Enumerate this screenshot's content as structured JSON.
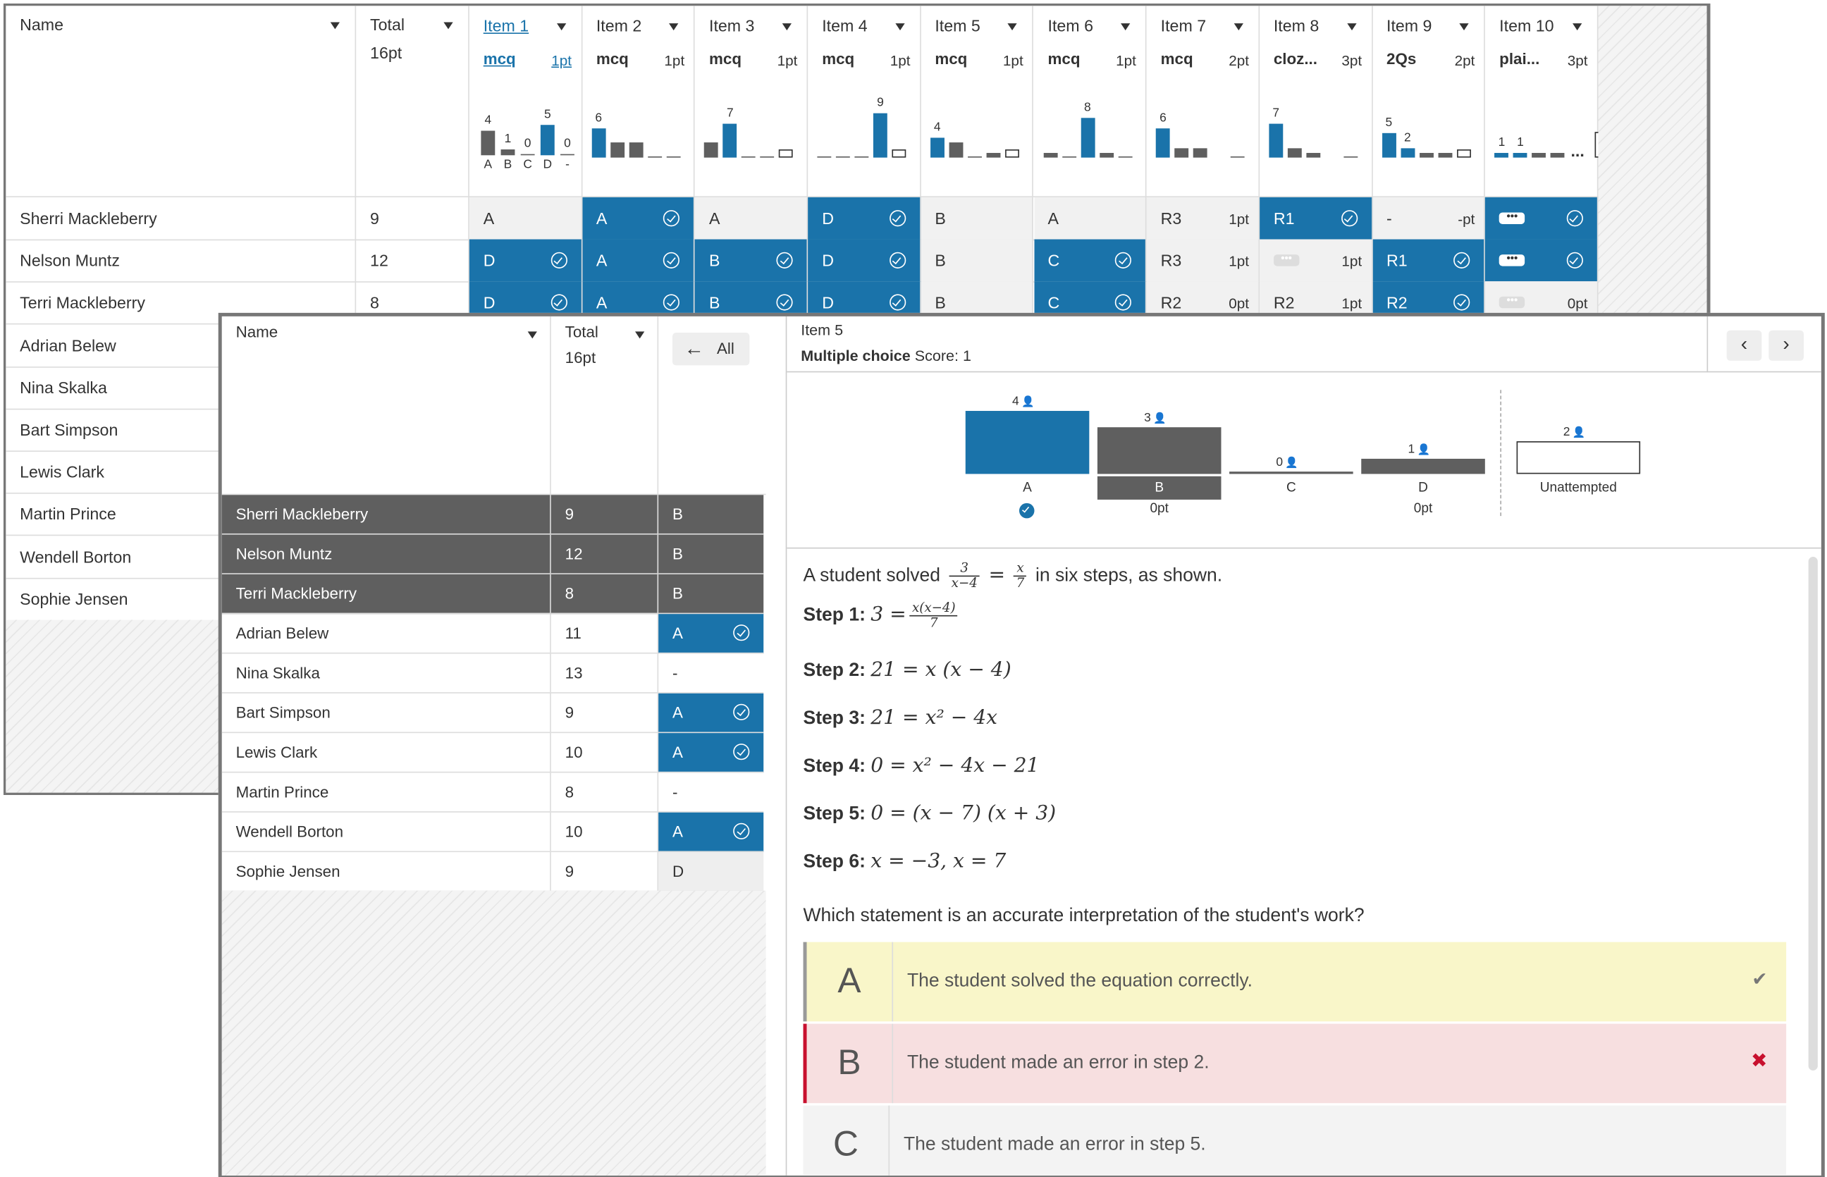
{
  "back": {
    "name_header": "Name",
    "total_header": "Total",
    "total_pts": "16pt",
    "items": [
      {
        "label": "Item 1",
        "type": "mcq",
        "pts": "1pt",
        "active": true
      },
      {
        "label": "Item 2",
        "type": "mcq",
        "pts": "1pt"
      },
      {
        "label": "Item 3",
        "type": "mcq",
        "pts": "1pt"
      },
      {
        "label": "Item 4",
        "type": "mcq",
        "pts": "1pt"
      },
      {
        "label": "Item 5",
        "type": "mcq",
        "pts": "1pt"
      },
      {
        "label": "Item 6",
        "type": "mcq",
        "pts": "1pt"
      },
      {
        "label": "Item 7",
        "type": "mcq",
        "pts": "2pt"
      },
      {
        "label": "Item 8",
        "type": "cloz...",
        "pts": "3pt"
      },
      {
        "label": "Item 9",
        "type": "2Qs",
        "pts": "2pt"
      },
      {
        "label": "Item 10",
        "type": "plai...",
        "pts": "3pt"
      }
    ],
    "item1_hist": {
      "counts": [
        "4",
        "1",
        "0",
        "5",
        "0"
      ],
      "labels": [
        "A",
        "B",
        "C",
        "D",
        "-"
      ]
    },
    "item_hist_peaks": [
      "6",
      "7",
      "9",
      "4",
      "8",
      "6",
      "7",
      "5",
      "2",
      "1",
      "1"
    ],
    "students": [
      "Sherri Mackleberry",
      "Nelson Muntz",
      "Terri Mackleberry",
      "Adrian Belew",
      "Nina Skalka",
      "Bart Simpson",
      "Lewis Clark",
      "Martin Prince",
      "Wendell Borton",
      "Sophie Jensen"
    ],
    "totals": [
      "9",
      "12",
      "8"
    ],
    "rows": [
      [
        {
          "v": "A",
          "s": "gray"
        },
        {
          "v": "A",
          "s": "blue",
          "c": 1
        },
        {
          "v": "A",
          "s": "gray"
        },
        {
          "v": "D",
          "s": "blue",
          "c": 1
        },
        {
          "v": "B",
          "s": "gray"
        },
        {
          "v": "A",
          "s": "gray"
        },
        {
          "v": "R3",
          "s": "gray",
          "p": "1pt"
        },
        {
          "v": "R1",
          "s": "blue",
          "c": 1
        },
        {
          "v": "-",
          "s": "gray",
          "p": "-pt"
        },
        {
          "v": "",
          "s": "blue",
          "c": 1,
          "d": 1
        }
      ],
      [
        {
          "v": "D",
          "s": "blue",
          "c": 1
        },
        {
          "v": "A",
          "s": "blue",
          "c": 1
        },
        {
          "v": "B",
          "s": "blue",
          "c": 1
        },
        {
          "v": "D",
          "s": "blue",
          "c": 1
        },
        {
          "v": "B",
          "s": "gray"
        },
        {
          "v": "C",
          "s": "blue",
          "c": 1
        },
        {
          "v": "R3",
          "s": "gray",
          "p": "1pt"
        },
        {
          "v": "",
          "s": "gray",
          "p": "1pt",
          "d": 1
        },
        {
          "v": "R1",
          "s": "blue",
          "c": 1
        },
        {
          "v": "",
          "s": "blue",
          "c": 1,
          "d": 1
        }
      ],
      [
        {
          "v": "D",
          "s": "blue",
          "c": 1
        },
        {
          "v": "A",
          "s": "blue",
          "c": 1
        },
        {
          "v": "B",
          "s": "blue",
          "c": 1
        },
        {
          "v": "D",
          "s": "blue",
          "c": 1
        },
        {
          "v": "B",
          "s": "gray"
        },
        {
          "v": "C",
          "s": "blue",
          "c": 1
        },
        {
          "v": "R2",
          "s": "gray",
          "p": "0pt"
        },
        {
          "v": "R2",
          "s": "gray",
          "p": "1pt"
        },
        {
          "v": "R2",
          "s": "blue",
          "c": 1
        },
        {
          "v": "",
          "s": "gray",
          "p": "0pt",
          "d": 1
        }
      ]
    ]
  },
  "front": {
    "name_header": "Name",
    "total_header": "Total",
    "total_pts": "16pt",
    "all_button": "All",
    "rows": [
      {
        "name": "Sherri Mackleberry",
        "total": "9",
        "ans": "B",
        "style": "dark"
      },
      {
        "name": "Nelson Muntz",
        "total": "12",
        "ans": "B",
        "style": "dark"
      },
      {
        "name": "Terri Mackleberry",
        "total": "8",
        "ans": "B",
        "style": "dark"
      },
      {
        "name": "Adrian Belew",
        "total": "11",
        "ans": "A",
        "style": "blue"
      },
      {
        "name": "Nina Skalka",
        "total": "13",
        "ans": "-",
        "style": "none"
      },
      {
        "name": "Bart Simpson",
        "total": "9",
        "ans": "A",
        "style": "blue"
      },
      {
        "name": "Lewis Clark",
        "total": "10",
        "ans": "A",
        "style": "blue"
      },
      {
        "name": "Martin Prince",
        "total": "8",
        "ans": "-",
        "style": "none"
      },
      {
        "name": "Wendell Borton",
        "total": "10",
        "ans": "A",
        "style": "blue"
      },
      {
        "name": "Sophie Jensen",
        "total": "9",
        "ans": "D",
        "style": "gray"
      }
    ],
    "detail": {
      "item": "Item 5",
      "qtype": "Multiple choice",
      "score": "Score: 1",
      "dist": [
        {
          "count": "4",
          "label": "A",
          "pt": "",
          "value": 4
        },
        {
          "count": "3",
          "label": "B",
          "pt": "0pt",
          "value": 3
        },
        {
          "count": "0",
          "label": "C",
          "pt": "",
          "value": 0
        },
        {
          "count": "1",
          "label": "D",
          "pt": "0pt",
          "value": 1
        },
        {
          "count": "2",
          "label": "Unattempted",
          "pt": "",
          "value": 2
        }
      ],
      "intro_a": "A student solved",
      "intro_b": "in six steps, as shown.",
      "steps": [
        {
          "label": "Step 1:",
          "math": "3 ="
        },
        {
          "label": "Step 2:",
          "math": "21 = x (x − 4)"
        },
        {
          "label": "Step 3:",
          "math": "21 = x² − 4x"
        },
        {
          "label": "Step 4:",
          "math": "0 = x² − 4x − 21"
        },
        {
          "label": "Step 5:",
          "math": "0 = (x − 7) (x + 3)"
        },
        {
          "label": "Step 6:",
          "math": "x = −3,  x = 7"
        }
      ],
      "frac_intro": {
        "n1": "3",
        "d1": "x−4",
        "n2": "x",
        "d2": "7"
      },
      "frac_step1": {
        "n": "x(x−4)",
        "d": "7"
      },
      "prompt": "Which statement is an accurate interpretation of the student's work?",
      "answers": [
        {
          "letter": "A",
          "text": "The student solved the equation correctly."
        },
        {
          "letter": "B",
          "text": "The student made an error in step 2."
        },
        {
          "letter": "C",
          "text": "The student made an error in step 5."
        }
      ]
    }
  }
}
